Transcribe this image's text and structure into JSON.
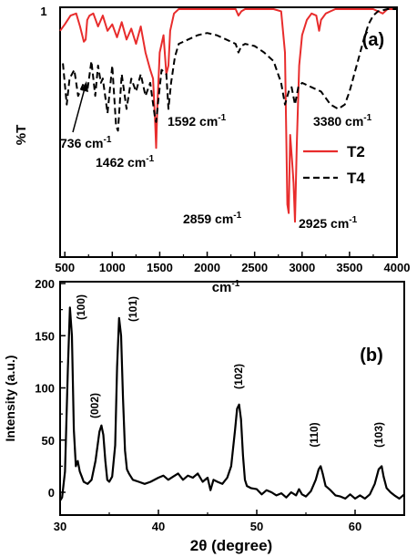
{
  "chart_data": [
    {
      "type": "line",
      "panel_label": "(a)",
      "xlabel": "cm-1",
      "ylabel": "%T",
      "xlim": [
        450,
        4000
      ],
      "x_ticks": [
        500,
        1000,
        1500,
        2000,
        2500,
        3000,
        3500,
        4000
      ],
      "y_ticks": [
        1
      ],
      "ylim": [
        0,
        1
      ],
      "legend": {
        "placement": "right-middle"
      },
      "series": [
        {
          "name": "T2",
          "color": "#e82c2c",
          "style": "solid",
          "x": [
            450,
            500,
            560,
            620,
            660,
            700,
            720,
            736,
            760,
            800,
            850,
            900,
            950,
            1000,
            1050,
            1100,
            1150,
            1200,
            1250,
            1300,
            1350,
            1400,
            1430,
            1450,
            1462,
            1475,
            1500,
            1540,
            1570,
            1592,
            1610,
            1650,
            1700,
            1800,
            1900,
            2000,
            2100,
            2200,
            2300,
            2330,
            2360,
            2400,
            2500,
            2600,
            2700,
            2780,
            2820,
            2845,
            2859,
            2875,
            2895,
            2910,
            2925,
            2945,
            2970,
            3000,
            3050,
            3100,
            3150,
            3180,
            3200,
            3250,
            3300,
            3350,
            3400,
            3450,
            3500,
            3550,
            3600,
            3650,
            3700,
            3750,
            3800,
            3850,
            3900,
            3950,
            4000
          ],
          "y": [
            0.9,
            0.93,
            0.97,
            0.98,
            0.92,
            0.85,
            0.86,
            0.95,
            0.97,
            0.98,
            0.92,
            0.97,
            0.9,
            0.93,
            0.87,
            0.94,
            0.86,
            0.91,
            0.84,
            0.92,
            0.8,
            0.72,
            0.68,
            0.5,
            0.36,
            0.55,
            0.8,
            0.88,
            0.7,
            0.74,
            0.9,
            0.98,
            1.0,
            1.0,
            1.0,
            1.0,
            1.0,
            1.0,
            1.0,
            0.97,
            0.99,
            1.0,
            1.0,
            1.0,
            1.0,
            0.99,
            0.8,
            0.1,
            0.06,
            0.42,
            0.3,
            0.2,
            0.02,
            0.38,
            0.74,
            0.88,
            0.95,
            0.98,
            0.97,
            0.9,
            0.95,
            0.98,
            0.99,
            1.0,
            1.0,
            1.0,
            1.0,
            1.0,
            1.0,
            1.0,
            1.0,
            1.0,
            0.99,
            0.98,
            1.0,
            1.0,
            1.0
          ]
        },
        {
          "name": "T4",
          "color": "#000000",
          "style": "dashed",
          "x": [
            480,
            520,
            550,
            600,
            640,
            700,
            736,
            780,
            820,
            850,
            880,
            900,
            950,
            1000,
            1040,
            1060,
            1100,
            1150,
            1200,
            1250,
            1300,
            1350,
            1400,
            1450,
            1462,
            1480,
            1520,
            1570,
            1592,
            1620,
            1660,
            1700,
            1800,
            1900,
            2000,
            2100,
            2200,
            2300,
            2330,
            2360,
            2400,
            2500,
            2600,
            2700,
            2780,
            2820,
            2859,
            2890,
            2925,
            2960,
            3000,
            3100,
            3200,
            3300,
            3380,
            3450,
            3500,
            3550,
            3600,
            3650,
            3700,
            3750,
            3800,
            3900,
            4000
          ],
          "y": [
            0.75,
            0.56,
            0.68,
            0.72,
            0.6,
            0.66,
            0.62,
            0.76,
            0.6,
            0.74,
            0.66,
            0.68,
            0.52,
            0.74,
            0.46,
            0.44,
            0.7,
            0.54,
            0.68,
            0.62,
            0.7,
            0.6,
            0.66,
            0.5,
            0.48,
            0.56,
            0.72,
            0.7,
            0.54,
            0.66,
            0.78,
            0.84,
            0.86,
            0.88,
            0.89,
            0.88,
            0.86,
            0.84,
            0.8,
            0.83,
            0.84,
            0.83,
            0.8,
            0.76,
            0.66,
            0.56,
            0.62,
            0.64,
            0.56,
            0.64,
            0.66,
            0.64,
            0.62,
            0.56,
            0.54,
            0.56,
            0.62,
            0.7,
            0.78,
            0.86,
            0.93,
            0.97,
            0.99,
            1.0,
            1.0
          ]
        }
      ],
      "annotations": [
        "736 cm-1",
        "1462 cm-1",
        "1592 cm-1",
        "3380 cm-1",
        "2859 cm-1",
        "2925 cm-1"
      ]
    },
    {
      "type": "line",
      "panel_label": "(b)",
      "xlabel": "2θ (degree)",
      "ylabel": "Intensity (a.u.)",
      "xlim": [
        30,
        65
      ],
      "ylim": [
        -10,
        200
      ],
      "x_ticks": [
        30,
        40,
        50,
        60
      ],
      "y_ticks": [
        0,
        50,
        100,
        150,
        200
      ],
      "series": [
        {
          "color": "#000000",
          "style": "solid",
          "x": [
            30.0,
            30.2,
            30.5,
            30.8,
            31.0,
            31.2,
            31.4,
            31.6,
            31.8,
            32.0,
            32.2,
            32.4,
            32.8,
            33.2,
            33.6,
            34.0,
            34.2,
            34.4,
            34.6,
            34.8,
            35.0,
            35.3,
            35.6,
            35.8,
            36.0,
            36.2,
            36.4,
            36.6,
            36.8,
            37.0,
            37.4,
            38.0,
            38.6,
            39.2,
            40.0,
            40.5,
            41.0,
            41.5,
            42.0,
            42.5,
            43.0,
            43.5,
            44.0,
            44.5,
            45.0,
            45.3,
            45.6,
            46.0,
            46.5,
            47.0,
            47.4,
            47.8,
            48.0,
            48.2,
            48.4,
            48.6,
            48.8,
            49.0,
            49.4,
            50.0,
            50.5,
            51.0,
            51.5,
            52.0,
            52.5,
            53.0,
            53.5,
            54.0,
            54.3,
            54.6,
            55.0,
            55.5,
            56.0,
            56.3,
            56.5,
            56.7,
            57.0,
            57.5,
            58.0,
            58.5,
            59.0,
            59.5,
            60.0,
            60.5,
            61.0,
            61.5,
            62.0,
            62.4,
            62.7,
            62.9,
            63.2,
            63.6,
            64.0,
            64.5,
            65.0
          ],
          "y": [
            -8,
            -5,
            20,
            120,
            177,
            150,
            60,
            25,
            30,
            20,
            15,
            10,
            8,
            12,
            30,
            58,
            64,
            55,
            30,
            12,
            10,
            15,
            45,
            120,
            167,
            150,
            90,
            40,
            22,
            18,
            12,
            10,
            8,
            10,
            14,
            16,
            12,
            15,
            18,
            12,
            16,
            14,
            18,
            10,
            14,
            2,
            12,
            10,
            8,
            14,
            25,
            60,
            80,
            84,
            70,
            35,
            12,
            6,
            4,
            3,
            -2,
            2,
            0,
            -3,
            -1,
            -5,
            0,
            -3,
            3,
            -2,
            -4,
            1,
            12,
            22,
            25,
            18,
            6,
            2,
            -3,
            -4,
            -6,
            -2,
            -6,
            -3,
            -6,
            -2,
            8,
            22,
            25,
            15,
            4,
            0,
            -3,
            -6,
            -2
          ]
        }
      ],
      "annotations": [
        "(100)",
        "(002)",
        "(101)",
        "(102)",
        "(110)",
        "(103)"
      ]
    }
  ]
}
